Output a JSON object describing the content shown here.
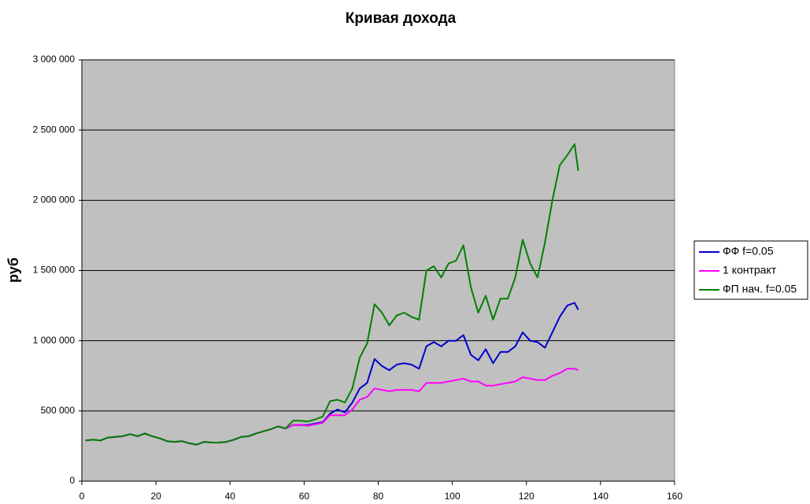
{
  "chart_data": {
    "type": "line",
    "title": "Кривая дохода",
    "y_label": "руб",
    "x": [
      1,
      3,
      5,
      7,
      9,
      11,
      13,
      15,
      17,
      19,
      21,
      23,
      25,
      27,
      29,
      31,
      33,
      35,
      37,
      39,
      41,
      43,
      45,
      47,
      49,
      51,
      53,
      55,
      57,
      59,
      61,
      63,
      65,
      67,
      69,
      71,
      73,
      75,
      77,
      79,
      81,
      83,
      85,
      87,
      89,
      91,
      93,
      95,
      97,
      99,
      101,
      103,
      105,
      107,
      109,
      111,
      113,
      115,
      117,
      119,
      121,
      123,
      125,
      127,
      129,
      131,
      133,
      134
    ],
    "series": [
      {
        "name": "ФФ f=0.05",
        "color": "#0000cc",
        "values": [
          290000,
          295000,
          290000,
          310000,
          315000,
          320000,
          335000,
          320000,
          340000,
          320000,
          305000,
          285000,
          280000,
          285000,
          270000,
          260000,
          280000,
          275000,
          275000,
          280000,
          295000,
          315000,
          320000,
          340000,
          355000,
          370000,
          390000,
          375000,
          400000,
          400000,
          400000,
          410000,
          420000,
          480000,
          510000,
          490000,
          560000,
          660000,
          700000,
          870000,
          820000,
          790000,
          830000,
          840000,
          830000,
          800000,
          960000,
          990000,
          960000,
          1000000,
          1000000,
          1040000,
          900000,
          860000,
          940000,
          840000,
          920000,
          920000,
          960000,
          1060000,
          1000000,
          990000,
          950000,
          1060000,
          1170000,
          1250000,
          1270000,
          1220000
        ]
      },
      {
        "name": "1 контракт",
        "color": "#ff00ff",
        "values": [
          290000,
          295000,
          290000,
          310000,
          315000,
          320000,
          335000,
          320000,
          340000,
          320000,
          305000,
          285000,
          280000,
          285000,
          270000,
          260000,
          280000,
          275000,
          275000,
          280000,
          295000,
          315000,
          320000,
          340000,
          355000,
          370000,
          390000,
          375000,
          400000,
          400000,
          395000,
          405000,
          415000,
          470000,
          470000,
          470000,
          510000,
          580000,
          600000,
          660000,
          650000,
          640000,
          650000,
          650000,
          650000,
          640000,
          700000,
          700000,
          700000,
          710000,
          720000,
          730000,
          710000,
          710000,
          680000,
          680000,
          690000,
          700000,
          710000,
          740000,
          730000,
          720000,
          720000,
          750000,
          770000,
          800000,
          800000,
          790000
        ]
      },
      {
        "name": "ФП нач. f=0.05",
        "color": "#008000",
        "values": [
          290000,
          295000,
          290000,
          310000,
          315000,
          320000,
          335000,
          320000,
          340000,
          320000,
          305000,
          285000,
          280000,
          285000,
          270000,
          260000,
          280000,
          275000,
          275000,
          280000,
          295000,
          315000,
          320000,
          340000,
          355000,
          370000,
          390000,
          375000,
          430000,
          430000,
          425000,
          440000,
          460000,
          570000,
          580000,
          560000,
          660000,
          880000,
          980000,
          1260000,
          1200000,
          1110000,
          1180000,
          1200000,
          1170000,
          1150000,
          1500000,
          1530000,
          1450000,
          1550000,
          1570000,
          1680000,
          1380000,
          1200000,
          1320000,
          1150000,
          1300000,
          1300000,
          1450000,
          1720000,
          1550000,
          1450000,
          1700000,
          2000000,
          2250000,
          2320000,
          2400000,
          2210000
        ]
      }
    ],
    "xlim": [
      0,
      160
    ],
    "xticks": [
      0,
      20,
      40,
      60,
      80,
      100,
      120,
      140,
      160
    ],
    "ylim": [
      0,
      3000000
    ],
    "yticks": [
      0,
      {
        "value": 500000,
        "label": "500 000"
      },
      {
        "value": 1000000,
        "label": "1 000 000"
      },
      {
        "value": 1500000,
        "label": "1 500 000"
      },
      {
        "value": 2000000,
        "label": "2 000 000"
      },
      {
        "value": 2500000,
        "label": "2 500 000"
      },
      {
        "value": 3000000,
        "label": "3 000 000"
      }
    ],
    "grid": true,
    "plot_background": "#c0c0c0",
    "legend": "right"
  }
}
